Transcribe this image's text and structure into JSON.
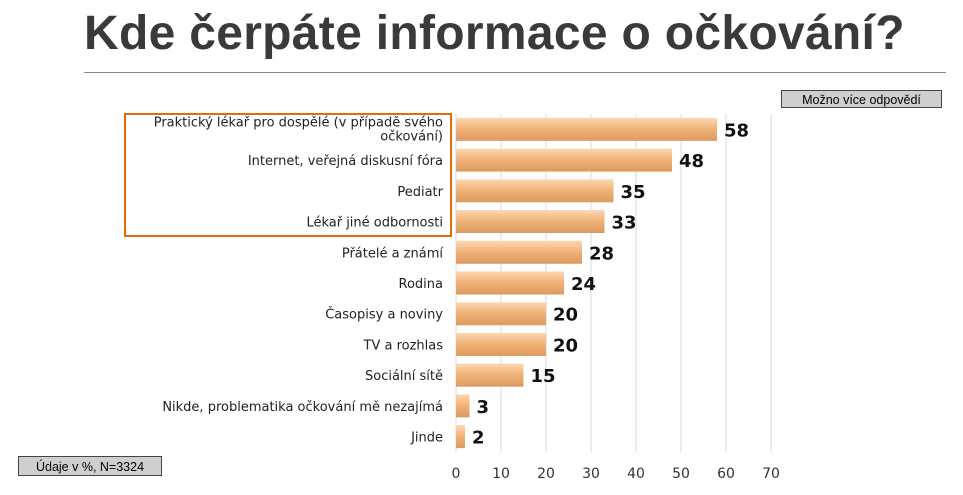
{
  "title": "Kde čerpáte informace o očkování?",
  "note_multi": "Možno více odpovědí",
  "note_source": "Údaje v %, N=3324",
  "colors": {
    "bar": "#f2b47a",
    "highlight": "#e36c09",
    "grid": "#d9d9d9"
  },
  "chart_data": {
    "type": "bar",
    "orientation": "horizontal",
    "categories": [
      "Praktický lékař pro dospělé (v případě svého očkování)",
      "Internet, veřejná diskusní fóra",
      "Pediatr",
      "Lékař jiné odbornosti",
      "Přátelé a známí",
      "Rodina",
      "Časopisy a noviny",
      "TV a rozhlas",
      "Sociální sítě",
      "Nikde, problematika očkování mě nezajímá",
      "Jinde"
    ],
    "label_lines": [
      [
        "Praktický lékař pro dospělé (v případě svého",
        "očkování)"
      ],
      [
        "Internet, veřejná diskusní fóra"
      ],
      [
        "Pediatr"
      ],
      [
        "Lékař jiné odbornosti"
      ],
      [
        "Přátelé a známí"
      ],
      [
        "Rodina"
      ],
      [
        "Časopisy a noviny"
      ],
      [
        "TV a rozhlas"
      ],
      [
        "Sociální sítě"
      ],
      [
        "Nikde, problematika očkování mě nezajímá"
      ],
      [
        "Jinde"
      ]
    ],
    "values": [
      58,
      48,
      35,
      33,
      28,
      24,
      20,
      20,
      15,
      3,
      2
    ],
    "xlim": [
      0,
      70
    ],
    "xticks": [
      0,
      10,
      20,
      30,
      40,
      50,
      60,
      70
    ],
    "grid": true,
    "highlighted_categories": [
      0,
      1,
      2,
      3
    ]
  }
}
